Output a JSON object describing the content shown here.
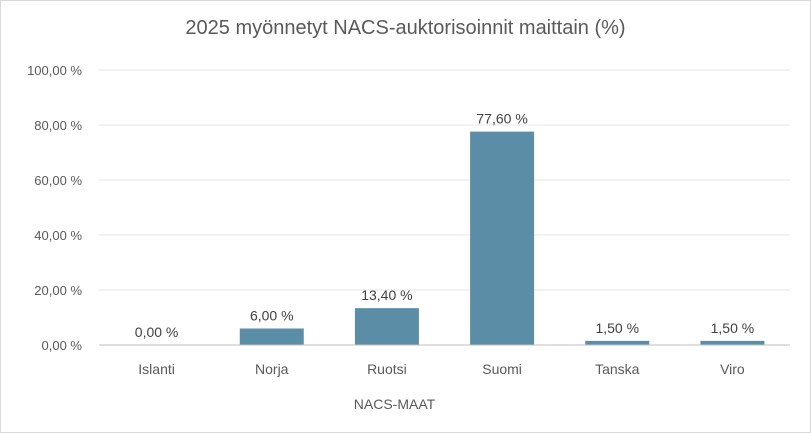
{
  "chart_data": {
    "type": "bar",
    "title": "2025 myönnetyt NACS-auktorisoinnit maittain (%)",
    "xlabel": "NACS-MAAT",
    "ylabel": "",
    "categories": [
      "Islanti",
      "Norja",
      "Ruotsi",
      "Suomi",
      "Tanska",
      "Viro"
    ],
    "values": [
      0.0,
      6.0,
      13.4,
      77.6,
      1.5,
      1.5
    ],
    "value_labels": [
      "0,00 %",
      "6,00 %",
      "13,40 %",
      "77,60 %",
      "1,50 %",
      "1,50 %"
    ],
    "ylim": [
      0,
      100
    ],
    "yticks": [
      0,
      20,
      40,
      60,
      80,
      100
    ],
    "ytick_labels": [
      "0,00 %",
      "20,00 %",
      "40,00 %",
      "60,00 %",
      "80,00 %",
      "100,00 %"
    ],
    "grid": true,
    "legend": "none",
    "bar_color": "#5b8ea6",
    "grid_color": "#e6e6e6",
    "axis_color": "#bfbfbf"
  }
}
